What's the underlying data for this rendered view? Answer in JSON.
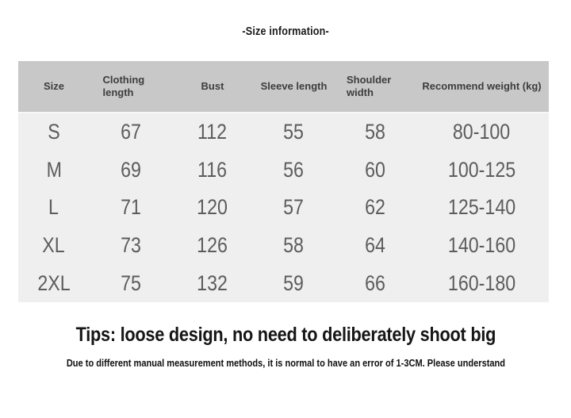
{
  "chart_data": {
    "type": "table",
    "title": "-Size information-",
    "columns": [
      "Size",
      "Clothing length",
      "Bust",
      "Sleeve length",
      "Shoulder width",
      "Recommend weight (kg)"
    ],
    "rows": [
      [
        "S",
        "67",
        "112",
        "55",
        "58",
        "80-100"
      ],
      [
        "M",
        "69",
        "116",
        "56",
        "60",
        "100-125"
      ],
      [
        "L",
        "71",
        "120",
        "57",
        "62",
        "125-140"
      ],
      [
        "XL",
        "73",
        "126",
        "58",
        "64",
        "140-160"
      ],
      [
        "2XL",
        "75",
        "132",
        "59",
        "66",
        "160-180"
      ]
    ],
    "layout_hints": {
      "header_position": "top",
      "grid": "off",
      "units_note": "measurements in cm, weight range in kg"
    }
  },
  "footer": {
    "tips": "Tips: loose design, no need to deliberately shoot big",
    "note": "Due to different manual measurement methods, it is normal to have an error of 1-3CM. Please understand"
  },
  "colors": {
    "page_bg": "#ffffff",
    "header_bg": "#c8c8c8",
    "body_bg": "#efefef",
    "header_text": "#3d3d3d",
    "cell_text": "#5c5c5c",
    "title_text": "#1b1b1b"
  }
}
